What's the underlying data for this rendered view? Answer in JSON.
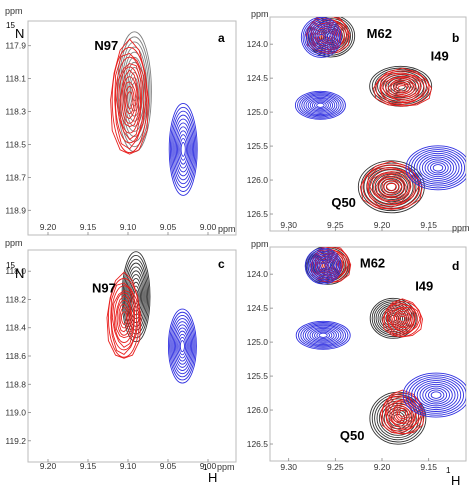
{
  "chart_data": [
    {
      "type": "contour",
      "panel_label": "a",
      "x_unit": "ppm",
      "y_unit": "ppm",
      "y_nucleus": "N",
      "y_nucleus_mass": "15",
      "x_ticks": [
        "9.20",
        "9.15",
        "9.10",
        "9.05",
        "9.00"
      ],
      "y_ticks": [
        "117.9",
        "118.1",
        "118.3",
        "118.5",
        "118.7",
        "118.9"
      ],
      "peaks": [
        {
          "assignment": "N97",
          "label_shown": true,
          "contours": [
            {
              "color": "#808080",
              "x": 9.092,
              "y": 118.18
            },
            {
              "color": "#e8201e",
              "x": 9.098,
              "y": 118.23
            }
          ]
        },
        {
          "assignment": "N97",
          "label_shown": false,
          "contours": [
            {
              "color": "#3030e0",
              "x": 9.031,
              "y": 118.53
            }
          ]
        }
      ]
    },
    {
      "type": "contour",
      "panel_label": "b",
      "x_unit": "ppm",
      "y_unit": "ppm",
      "x_ticks": [
        "9.30",
        "9.25",
        "9.20",
        "9.15"
      ],
      "y_ticks": [
        "124.0",
        "124.5",
        "125.0",
        "125.5",
        "126.0",
        "126.5"
      ],
      "peaks": [
        {
          "assignment": "M62",
          "label_shown": true,
          "contours": [
            {
              "color": "#333333",
              "x": 9.255,
              "y": 123.88
            },
            {
              "color": "#e8201e",
              "x": 9.258,
              "y": 123.86
            },
            {
              "color": "#3030e0",
              "x": 9.265,
              "y": 123.9
            }
          ]
        },
        {
          "assignment": "I49",
          "label_shown": true,
          "contours": [
            {
              "color": "#333333",
              "x": 9.18,
              "y": 124.62
            },
            {
              "color": "#e8201e",
              "x": 9.178,
              "y": 124.65
            }
          ]
        },
        {
          "assignment": "",
          "label_shown": false,
          "contours": [
            {
              "color": "#3030e0",
              "x": 9.266,
              "y": 124.9
            }
          ]
        },
        {
          "assignment": "Q50",
          "label_shown": true,
          "contours": [
            {
              "color": "#333333",
              "x": 9.19,
              "y": 126.1
            },
            {
              "color": "#e8201e",
              "x": 9.19,
              "y": 126.1
            }
          ]
        },
        {
          "assignment": "",
          "label_shown": false,
          "contours": [
            {
              "color": "#3030e0",
              "x": 9.14,
              "y": 125.82
            }
          ]
        }
      ]
    },
    {
      "type": "contour",
      "panel_label": "c",
      "x_unit": "ppm",
      "y_unit": "ppm",
      "y_nucleus": "N",
      "y_nucleus_mass": "15",
      "x_nucleus": "H",
      "x_nucleus_mass": "1",
      "x_ticks": [
        "9.20",
        "9.15",
        "9.10",
        "9.05",
        "9.00"
      ],
      "y_ticks": [
        "118.0",
        "118.2",
        "118.4",
        "118.6",
        "118.8",
        "119.0",
        "119.2"
      ],
      "peaks": [
        {
          "assignment": "N97",
          "label_shown": true,
          "contours": [
            {
              "color": "#333333",
              "x": 9.09,
              "y": 118.18
            },
            {
              "color": "#e8201e",
              "x": 9.105,
              "y": 118.33
            }
          ]
        },
        {
          "assignment": "",
          "label_shown": false,
          "contours": [
            {
              "color": "#3030e0",
              "x": 9.032,
              "y": 118.53
            }
          ]
        }
      ]
    },
    {
      "type": "contour",
      "panel_label": "d",
      "x_unit": "ppm",
      "y_unit": "ppm",
      "x_nucleus": "H",
      "x_nucleus_mass": "1",
      "x_ticks": [
        "9.30",
        "9.25",
        "9.20",
        "9.15"
      ],
      "y_ticks": [
        "124.0",
        "124.5",
        "125.0",
        "125.5",
        "126.0",
        "126.5"
      ],
      "peaks": [
        {
          "assignment": "M62",
          "label_shown": true,
          "contours": [
            {
              "color": "#333333",
              "x": 9.258,
              "y": 123.87
            },
            {
              "color": "#e8201e",
              "x": 9.255,
              "y": 123.86
            },
            {
              "color": "#3030e0",
              "x": 9.263,
              "y": 123.88
            }
          ]
        },
        {
          "assignment": "I49",
          "label_shown": true,
          "contours": [
            {
              "color": "#333333",
              "x": 9.188,
              "y": 124.65
            },
            {
              "color": "#e8201e",
              "x": 9.178,
              "y": 124.66
            }
          ]
        },
        {
          "assignment": "",
          "label_shown": false,
          "contours": [
            {
              "color": "#3030e0",
              "x": 9.263,
              "y": 124.9
            }
          ]
        },
        {
          "assignment": "Q50",
          "label_shown": true,
          "contours": [
            {
              "color": "#333333",
              "x": 9.183,
              "y": 126.12
            },
            {
              "color": "#e8201e",
              "x": 9.178,
              "y": 126.05
            }
          ]
        },
        {
          "assignment": "",
          "label_shown": false,
          "contours": [
            {
              "color": "#3030e0",
              "x": 9.142,
              "y": 125.78
            }
          ]
        }
      ]
    }
  ]
}
